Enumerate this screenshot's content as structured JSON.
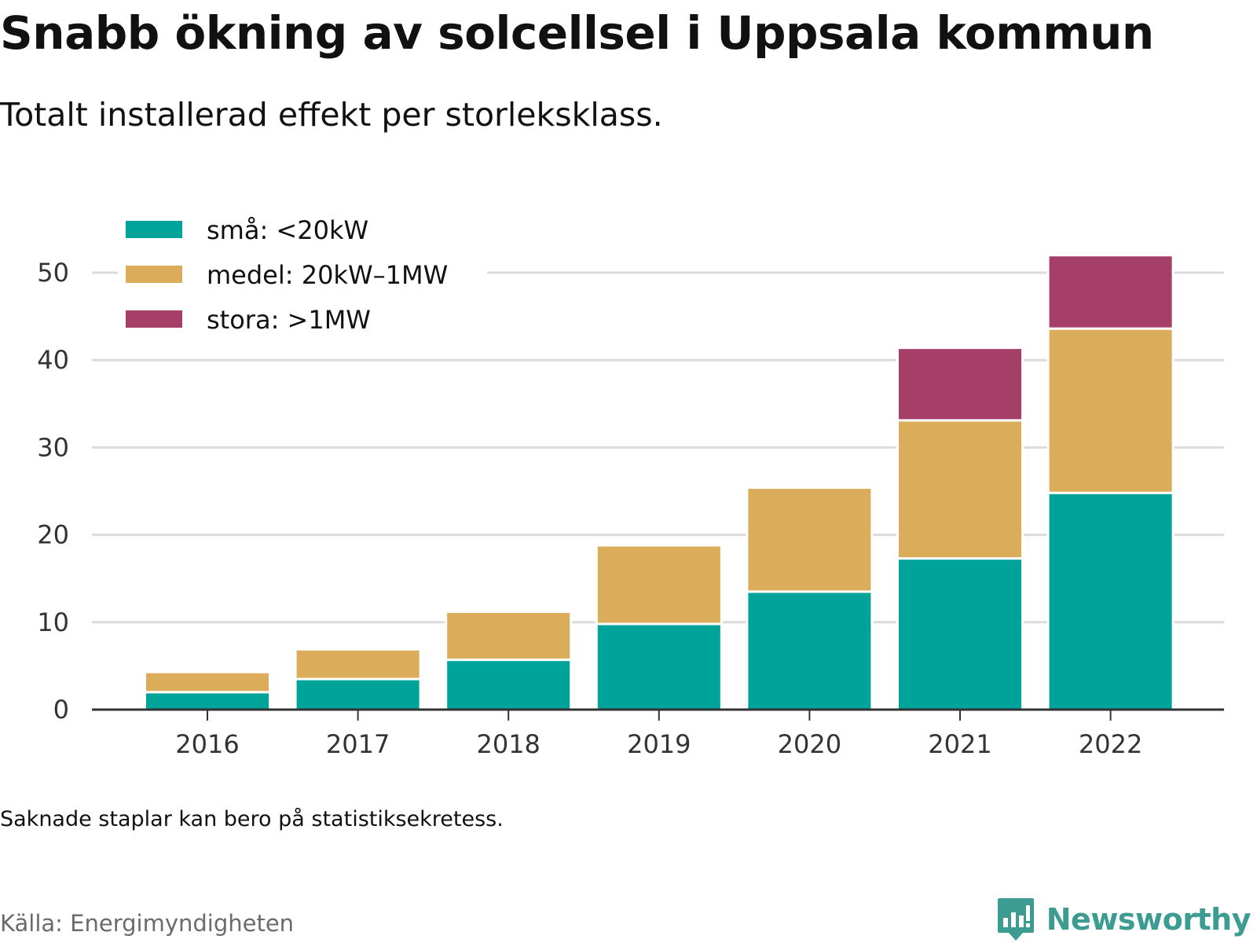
{
  "title": "Snabb ökning av solcellsel i Uppsala kommun",
  "subtitle": "Totalt installerad effekt per storleksklass.",
  "footnote": "Saknade staplar kan bero på statistiksekretess.",
  "source": "Källa: Energimyndigheten",
  "brand": {
    "name": "Newsworthy",
    "icon": "newsworthy-logo-icon",
    "color": "#3c9c91"
  },
  "chart_data": {
    "type": "bar",
    "stacked": true,
    "categories": [
      "2016",
      "2017",
      "2018",
      "2019",
      "2020",
      "2021",
      "2022"
    ],
    "series": [
      {
        "name": "små: <20kW",
        "color": "#00a39a",
        "values": [
          2.0,
          3.5,
          5.7,
          9.8,
          13.5,
          17.3,
          24.8
        ]
      },
      {
        "name": "medel: 20kW–1MW",
        "color": "#dbac5a",
        "values": [
          2.3,
          3.4,
          5.5,
          9.0,
          11.9,
          15.8,
          18.8
        ]
      },
      {
        "name": "stora: >1MW",
        "color": "#a63f68",
        "values": [
          null,
          null,
          null,
          null,
          null,
          8.3,
          8.4
        ]
      }
    ],
    "ylim": [
      0,
      55
    ],
    "yticks": [
      0,
      10,
      20,
      30,
      40,
      50
    ],
    "grid": true,
    "legend": "top-left"
  }
}
